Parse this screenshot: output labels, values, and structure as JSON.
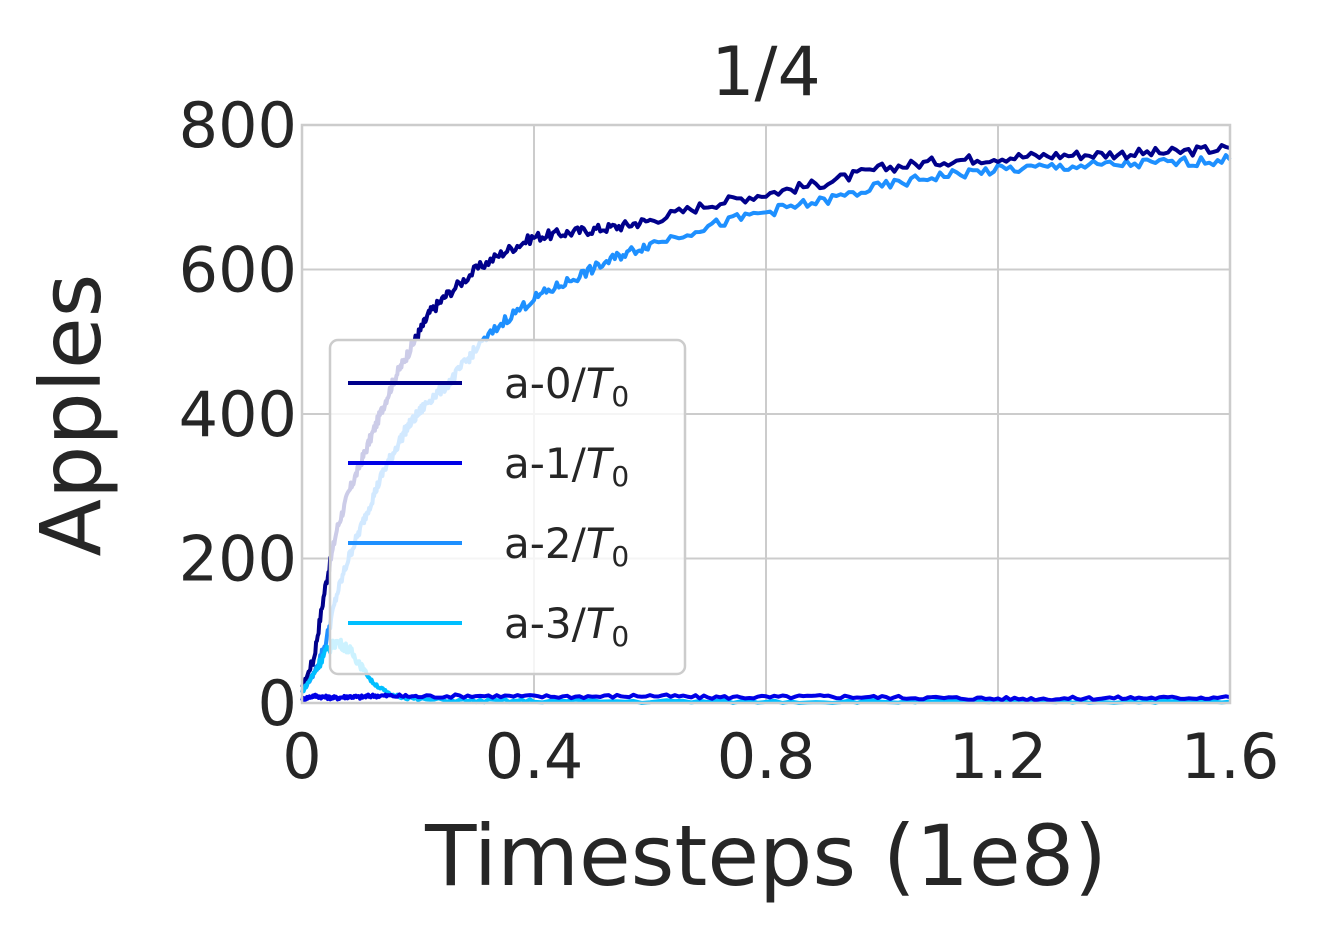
{
  "chart_data": {
    "type": "line",
    "title": "1/4",
    "xlabel": "Timesteps (1e8)",
    "ylabel": "Apples",
    "xlim": [
      0,
      1.6
    ],
    "ylim": [
      0,
      800
    ],
    "xticks": [
      0,
      0.4,
      0.8,
      1.2,
      1.6
    ],
    "xtick_labels": [
      "0",
      "0.4",
      "0.8",
      "1.2",
      "1.6"
    ],
    "yticks": [
      0,
      200,
      400,
      600,
      800
    ],
    "ytick_labels": [
      "0",
      "200",
      "400",
      "600",
      "800"
    ],
    "grid": true,
    "legend_position": "lower-left",
    "series": [
      {
        "name": "a-0/T0",
        "legend_main": "a-0/",
        "legend_var": "T",
        "legend_sub": "0",
        "color": "#00008b",
        "x": [
          0,
          0.02,
          0.04,
          0.06,
          0.08,
          0.1,
          0.12,
          0.14,
          0.16,
          0.18,
          0.2,
          0.22,
          0.25,
          0.3,
          0.35,
          0.4,
          0.45,
          0.5,
          0.55,
          0.6,
          0.7,
          0.8,
          0.9,
          1.0,
          1.1,
          1.2,
          1.3,
          1.4,
          1.5,
          1.6
        ],
        "y": [
          20,
          60,
          160,
          240,
          290,
          330,
          370,
          410,
          450,
          480,
          510,
          540,
          565,
          600,
          625,
          645,
          650,
          655,
          660,
          668,
          690,
          705,
          720,
          740,
          750,
          755,
          758,
          760,
          762,
          768
        ]
      },
      {
        "name": "a-1/T0",
        "legend_main": "a-1/",
        "legend_var": "T",
        "legend_sub": "0",
        "color": "#0000e6",
        "x": [
          0,
          0.02,
          0.04,
          0.06,
          0.08,
          0.1,
          0.12,
          0.15,
          0.2,
          0.3,
          0.4,
          0.5,
          0.6,
          0.7,
          0.8,
          0.9,
          1.0,
          1.1,
          1.2,
          1.3,
          1.4,
          1.5,
          1.6
        ],
        "y": [
          5,
          10,
          8,
          7,
          9,
          8,
          10,
          10,
          9,
          10,
          9,
          9,
          10,
          8,
          8,
          9,
          8,
          7,
          6,
          6,
          7,
          7,
          8
        ]
      },
      {
        "name": "a-2/T0",
        "legend_main": "a-2/",
        "legend_var": "T",
        "legend_sub": "0",
        "color": "#1e90ff",
        "x": [
          0,
          0.02,
          0.04,
          0.06,
          0.08,
          0.1,
          0.12,
          0.14,
          0.16,
          0.18,
          0.2,
          0.22,
          0.25,
          0.28,
          0.3,
          0.35,
          0.4,
          0.45,
          0.5,
          0.55,
          0.6,
          0.7,
          0.8,
          0.9,
          1.0,
          1.1,
          1.2,
          1.3,
          1.4,
          1.5,
          1.6
        ],
        "y": [
          15,
          40,
          80,
          150,
          200,
          240,
          280,
          320,
          350,
          380,
          400,
          420,
          440,
          470,
          490,
          530,
          560,
          580,
          600,
          620,
          635,
          660,
          680,
          695,
          715,
          730,
          738,
          742,
          745,
          748,
          752
        ]
      },
      {
        "name": "a-3/T0",
        "legend_main": "a-3/",
        "legend_var": "T",
        "legend_sub": "0",
        "color": "#00bfff",
        "x": [
          0,
          0.02,
          0.04,
          0.06,
          0.08,
          0.1,
          0.12,
          0.15,
          0.2,
          0.3,
          0.4,
          0.6,
          0.8,
          1.0,
          1.2,
          1.4,
          1.6
        ],
        "y": [
          15,
          40,
          70,
          85,
          75,
          55,
          30,
          12,
          5,
          3,
          3,
          2,
          2,
          2,
          2,
          2,
          2
        ]
      }
    ]
  }
}
